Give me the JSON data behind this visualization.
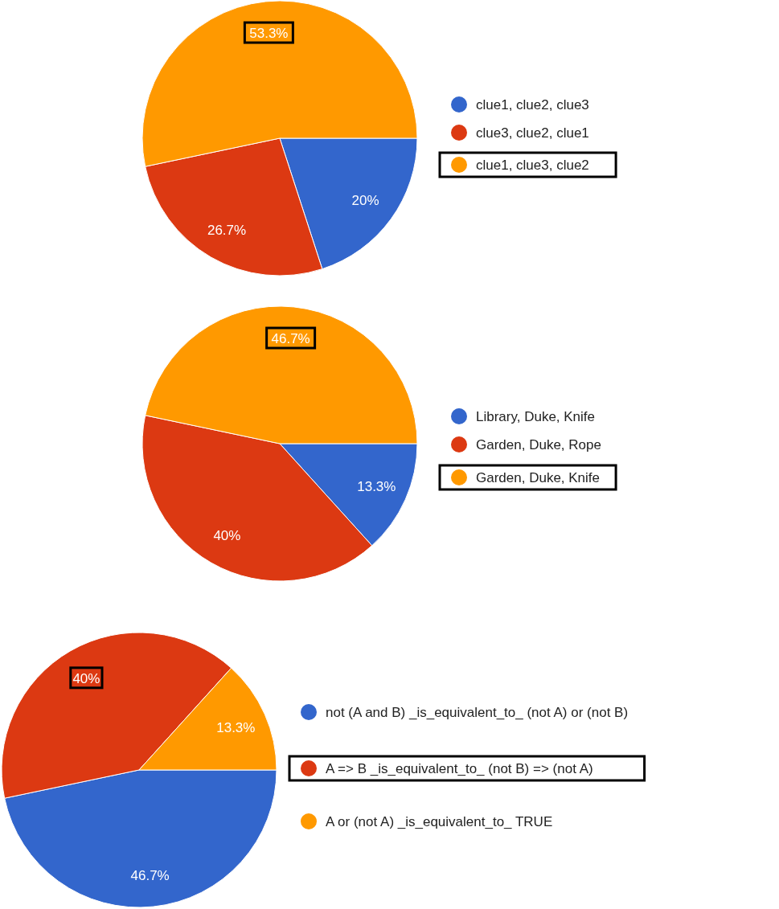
{
  "chart_data": [
    {
      "type": "pie",
      "categories": [
        "clue1, clue2, clue3",
        "clue3, clue2, clue1",
        "clue1, clue3, clue2"
      ],
      "values": [
        20,
        26.7,
        53.3
      ],
      "value_labels": [
        "20%",
        "26.7%",
        "53.3%"
      ],
      "colors": [
        "#3366cc",
        "#dc3912",
        "#ff9900"
      ],
      "legend": "right"
    },
    {
      "type": "pie",
      "categories": [
        "Library, Duke, Knife",
        "Garden, Duke, Rope",
        "Garden, Duke, Knife"
      ],
      "values": [
        13.3,
        40,
        46.7
      ],
      "value_labels": [
        "13.3%",
        "40%",
        "46.7%"
      ],
      "colors": [
        "#3366cc",
        "#dc3912",
        "#ff9900"
      ],
      "legend": "right"
    },
    {
      "type": "pie",
      "categories": [
        "not (A and B) _is_equivalent_to_ (not A) or (not B)",
        "A => B _is_equivalent_to_ (not B) => (not A)",
        "A or (not A) _is_equivalent_to_ TRUE"
      ],
      "values": [
        46.7,
        40,
        13.3
      ],
      "value_labels": [
        "46.7%",
        "40%",
        "13.3%"
      ],
      "colors": [
        "#3366cc",
        "#dc3912",
        "#ff9900"
      ],
      "legend": "right"
    }
  ]
}
